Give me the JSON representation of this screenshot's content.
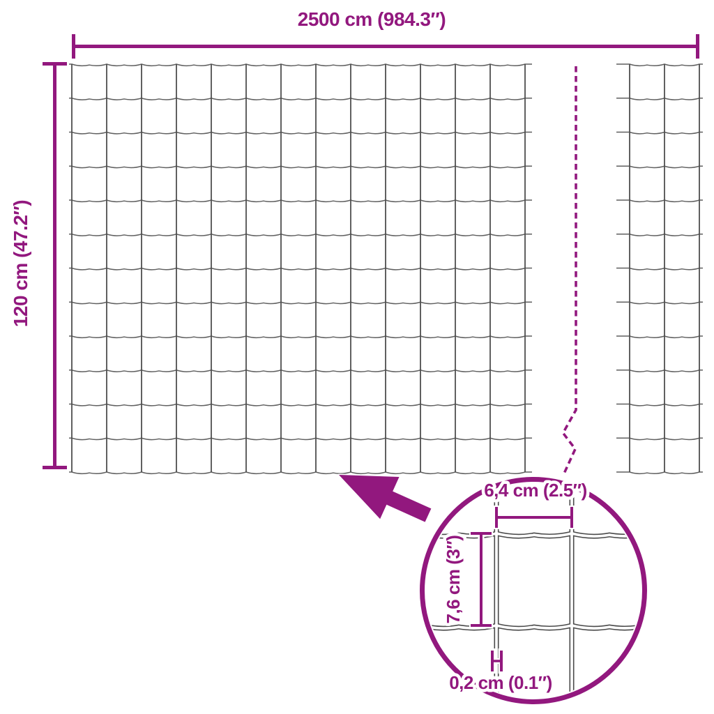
{
  "title": "Wire mesh fence dimension diagram",
  "colors": {
    "accent": "#92187E",
    "wire_gray": "#5f5f5f",
    "wire_detail_gray": "#4a4a4a",
    "background": "#ffffff"
  },
  "diagram": {
    "overall": {
      "width_label": "2500 cm (984.3″)",
      "height_label": "120 cm (47.2″)"
    },
    "detail": {
      "opening_width_label": "6,4 cm (2.5″)",
      "opening_height_label": "7,6 cm (3″)",
      "wire_thickness_label": "0,2 cm (0.1″)"
    }
  }
}
